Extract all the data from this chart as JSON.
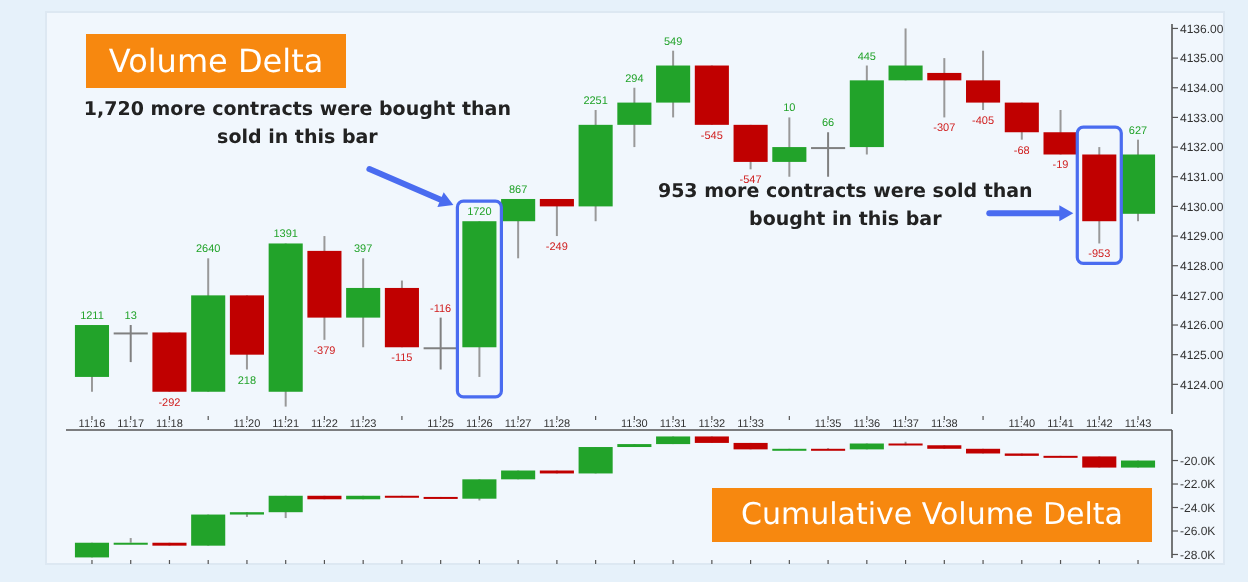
{
  "chart_data": [
    {
      "type": "candlestick",
      "title": "Volume Delta",
      "categories": [
        "11:16",
        "11:17",
        "11:18",
        null,
        "11:20",
        "11:21",
        "11:22",
        "11:23",
        null,
        "11:25",
        "11:26",
        "11:27",
        "11:28",
        null,
        "11:30",
        "11:31",
        "11:32",
        "11:33",
        null,
        "11:35",
        "11:36",
        "11:37",
        "11:38",
        null,
        "11:40",
        "11:41",
        "11:42",
        "11:43"
      ],
      "ohlc": [
        [
          4124.25,
          4126,
          4123.75,
          4126
        ],
        [
          4125.75,
          4126,
          4124.75,
          4125.75
        ],
        [
          4125.75,
          4125.75,
          4123.75,
          4123.75
        ],
        [
          4123.75,
          4128.25,
          4123.75,
          4127
        ],
        [
          4127,
          4127,
          4124.5,
          4125
        ],
        [
          4123.75,
          4128.75,
          4123.25,
          4128.75
        ],
        [
          4128.5,
          4129,
          4125.5,
          4126.25
        ],
        [
          4126.25,
          4128.25,
          4125.25,
          4127.25
        ],
        [
          4127.25,
          4127.5,
          4125.25,
          4125.25
        ],
        [
          4125.25,
          4126.25,
          4124.5,
          4125.25
        ],
        [
          4125.25,
          4129.5,
          4124.25,
          4129.5
        ],
        [
          4129.5,
          4130.25,
          4128.25,
          4130.25
        ],
        [
          4130.25,
          4130.25,
          4129,
          4130
        ],
        [
          4130,
          4133.25,
          4129.5,
          4132.75
        ],
        [
          4132.75,
          4134,
          4132,
          4133.5
        ],
        [
          4133.5,
          4135.25,
          4133,
          4134.75
        ],
        [
          4134.75,
          4134.75,
          4132.75,
          4132.75
        ],
        [
          4132.75,
          4132.75,
          4131.25,
          4131.5
        ],
        [
          4131.5,
          4133,
          4131,
          4132
        ],
        [
          4132,
          4132.5,
          4131,
          4132
        ],
        [
          4132,
          4134.75,
          4131.75,
          4134.25
        ],
        [
          4134.25,
          4136,
          4134.25,
          4134.75
        ],
        [
          4134.5,
          4135,
          4133,
          4134.25
        ],
        [
          4134.25,
          4135.25,
          4133.25,
          4133.5
        ],
        [
          4133.5,
          4133.5,
          4132.25,
          4132.5
        ],
        [
          4132.5,
          4133.25,
          4131.75,
          4131.75
        ],
        [
          4131.75,
          4132,
          4128.75,
          4129.5
        ],
        [
          4129.75,
          4132.25,
          4129.5,
          4131.75
        ]
      ],
      "colors": [
        "#22a32a",
        "#808080",
        "#c00000",
        "#22a32a",
        "#c00000",
        "#22a32a",
        "#c00000",
        "#22a32a",
        "#c00000",
        "#808080",
        "#22a32a",
        "#22a32a",
        "#c00000",
        "#22a32a",
        "#22a32a",
        "#22a32a",
        "#c00000",
        "#c00000",
        "#22a32a",
        "#808080",
        "#22a32a",
        "#22a32a",
        "#c00000",
        "#c00000",
        "#c00000",
        "#c00000",
        "#c00000",
        "#22a32a"
      ],
      "value_labels": [
        "1211",
        "13",
        "-292",
        "2640",
        "218",
        "1391",
        "-379",
        "397",
        "-115",
        "-116",
        "1720",
        "867",
        "-249",
        "2251",
        "294",
        "549",
        "-545",
        "-547",
        "10",
        "66",
        "445",
        null,
        "-307",
        "-405",
        "-68",
        "-19",
        "-953",
        "627"
      ],
      "ylim": [
        4123,
        4136.15
      ],
      "yticks": [
        {
          "value": 4124,
          "label": "4124.00"
        },
        {
          "value": 4125,
          "label": "4125.00"
        },
        {
          "value": 4126,
          "label": "4126.00"
        },
        {
          "value": 4127,
          "label": "4127.00"
        },
        {
          "value": 4128,
          "label": "4128.00"
        },
        {
          "value": 4129,
          "label": "4129.00"
        },
        {
          "value": 4130,
          "label": "4130.00"
        },
        {
          "value": 4131,
          "label": "4131.00"
        },
        {
          "value": 4132,
          "label": "4132.00"
        },
        {
          "value": 4133,
          "label": "4133.00"
        },
        {
          "value": 4134,
          "label": "4134.00"
        },
        {
          "value": 4135,
          "label": "4135.00"
        },
        {
          "value": 4136,
          "label": "4136.00"
        }
      ],
      "annotations": [
        "1,720 more contracts were bought than sold in this bar",
        "953 more contracts were sold than bought in this bar"
      ]
    },
    {
      "type": "candlestick",
      "title": "Cumulative Volume Delta",
      "tick_labels": "y",
      "categories": [
        null,
        null,
        null,
        null,
        null,
        null,
        null,
        null,
        null,
        null,
        null,
        null,
        null,
        null,
        null,
        null,
        null,
        null,
        null,
        null,
        null,
        null,
        null,
        null,
        null,
        null,
        null,
        null
      ],
      "ohlc": [
        [
          -28.25,
          -27,
          -28.25,
          -27
        ],
        [
          -27,
          -26.6,
          -27,
          -27
        ],
        [
          -27,
          -27,
          -27.25,
          -27.25
        ],
        [
          -27.25,
          -24.6,
          -27.25,
          -24.6
        ],
        [
          -24.6,
          -24.4,
          -24.8,
          -24.4
        ],
        [
          -24.4,
          -23,
          -24.9,
          -23
        ],
        [
          -23,
          -23,
          -23.3,
          -23.3
        ],
        [
          -23.3,
          -23,
          -23.3,
          -23
        ],
        [
          -23,
          -23,
          -23.1,
          -23.1
        ],
        [
          -23.1,
          -23.1,
          -23.25,
          -23.25
        ],
        [
          -23.25,
          -21.6,
          -23.4,
          -21.6
        ],
        [
          -21.6,
          -20.85,
          -21.6,
          -20.85
        ],
        [
          -20.85,
          -20.85,
          -21.1,
          -21.1
        ],
        [
          -21.1,
          -18.85,
          -21.1,
          -18.85
        ],
        [
          -18.85,
          -18.6,
          -18.85,
          -18.6
        ],
        [
          -18.6,
          -17.95,
          -18.6,
          -17.95
        ],
        [
          -17.95,
          -17.95,
          -18.5,
          -18.5
        ],
        [
          -18.5,
          -18.5,
          -19.05,
          -19.05
        ],
        [
          -19.05,
          -19,
          -19.05,
          -19
        ],
        [
          -19,
          -18.95,
          -19.05,
          -19.05
        ],
        [
          -19.05,
          -18.55,
          -19.05,
          -18.55
        ],
        [
          -18.55,
          -18.4,
          -18.7,
          -18.7
        ],
        [
          -18.7,
          -18.7,
          -19,
          -19
        ],
        [
          -19,
          -19,
          -19.4,
          -19.4
        ],
        [
          -19.4,
          -19.4,
          -19.6,
          -19.6
        ],
        [
          -19.6,
          -19.6,
          -19.65,
          -19.65
        ],
        [
          -19.65,
          -19.65,
          -20.6,
          -20.6
        ],
        [
          -20.6,
          -20,
          -20.6,
          -20
        ]
      ],
      "colors": [
        "#22a32a",
        "#22a32a",
        "#c00000",
        "#22a32a",
        "#22a32a",
        "#22a32a",
        "#c00000",
        "#22a32a",
        "#c00000",
        "#c00000",
        "#22a32a",
        "#22a32a",
        "#c00000",
        "#22a32a",
        "#22a32a",
        "#22a32a",
        "#c00000",
        "#c00000",
        "#22a32a",
        "#c00000",
        "#22a32a",
        "#c00000",
        "#c00000",
        "#c00000",
        "#c00000",
        "#c00000",
        "#c00000",
        "#22a32a"
      ],
      "ylim": [
        -28.3,
        -17.4
      ],
      "yticks": [
        {
          "value": -20,
          "label": "-20.0K"
        },
        {
          "value": -22,
          "label": "-22.0K"
        },
        {
          "value": -24,
          "label": "-24.0K"
        },
        {
          "value": -26,
          "label": "-26.0K"
        },
        {
          "value": -28,
          "label": "-28.0K"
        }
      ]
    }
  ]
}
